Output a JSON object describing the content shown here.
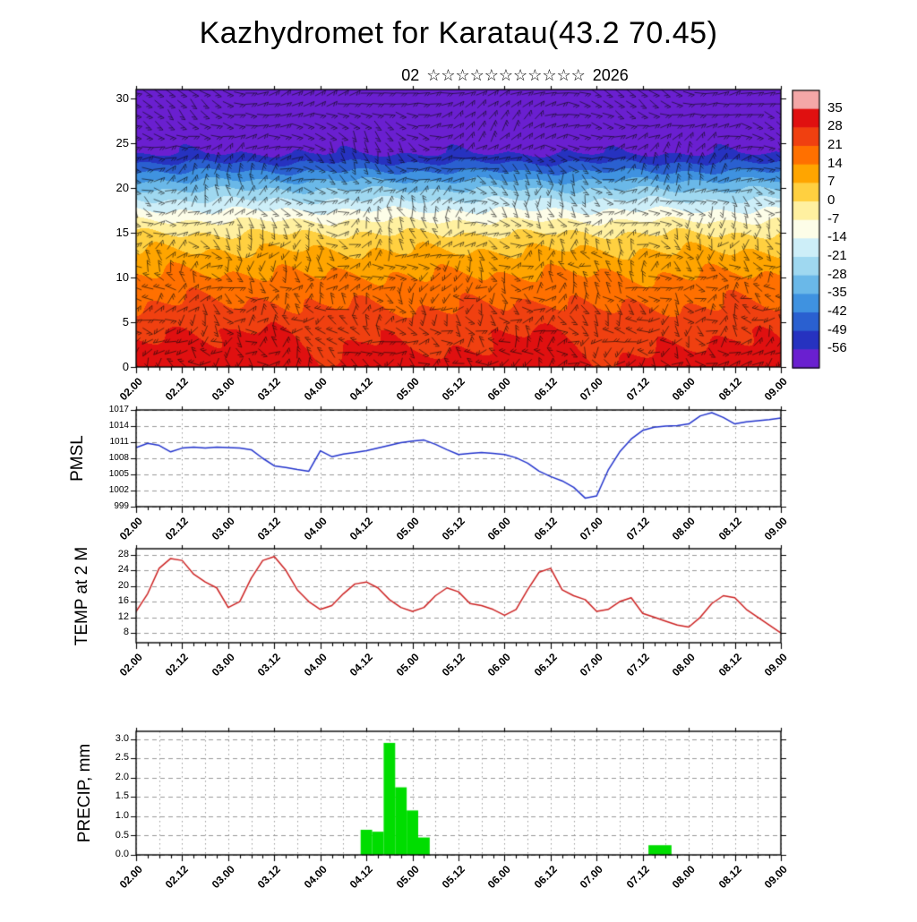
{
  "header": {
    "title": "Kazhydromet for Karatau(43.2 70.45)",
    "subtitle_prefix": "02",
    "subtitle_stars": "☆☆☆☆☆☆☆☆☆☆☆",
    "subtitle_year": "2026"
  },
  "x_axis": {
    "labels": [
      "02.00",
      "02.12",
      "03.00",
      "03.12",
      "04.00",
      "04.12",
      "05.00",
      "05.12",
      "06.00",
      "06.12",
      "07.00",
      "07.12",
      "08.00",
      "08.12",
      "09.00"
    ],
    "hours_start": 0,
    "hours_end": 168,
    "label_step_hours": 12,
    "minor_step_hours": 3
  },
  "colorbar": {
    "ticks": [
      35,
      28,
      21,
      14,
      7,
      0,
      -7,
      -14,
      -21,
      -28,
      -35,
      -42,
      -49,
      -56
    ],
    "colors_top_to_bottom": [
      "#f4a7a7",
      "#e01010",
      "#f04010",
      "#ff7000",
      "#ffa500",
      "#ffd040",
      "#fff0a0",
      "#fdfde8",
      "#cdeef8",
      "#9fd8f0",
      "#6ab8e8",
      "#3f92e0",
      "#2a60d0",
      "#2632c0",
      "#6a1fd0"
    ]
  },
  "chart_data": [
    {
      "type": "heatmap",
      "name": "temperature-height-cross-section",
      "ylabel": "",
      "y_ticks": [
        0,
        5,
        10,
        15,
        20,
        25,
        30
      ],
      "ylim": [
        0,
        31
      ],
      "levels": [
        0,
        2,
        4,
        6,
        8,
        10,
        12,
        14,
        16,
        18,
        20,
        22,
        24,
        26,
        28,
        30
      ],
      "baseline_temp_profile": [
        31,
        29,
        27,
        23,
        19,
        15,
        10,
        4,
        -5,
        -17,
        -29,
        -43,
        -57,
        -61,
        -63,
        -64
      ],
      "surface_anomaly_per_12h": [
        -1,
        3,
        -1,
        3.5,
        -3,
        0,
        -2,
        -1,
        -1,
        3.5,
        -3,
        -2,
        -1,
        1,
        -1
      ],
      "wind_barbs_overlay": true,
      "vgrid_hours": 0
    },
    {
      "type": "line",
      "name": "pmsl",
      "ylabel": "PMSL",
      "color": "#2233cc",
      "y_ticks": [
        999,
        1002,
        1005,
        1008,
        1011,
        1014,
        1017
      ],
      "ylim": [
        999,
        1017
      ],
      "step_hours": 3,
      "vgrid_hours": 12,
      "values": [
        1010.0,
        1010.8,
        1010.4,
        1009.2,
        1009.9,
        1010.1,
        1009.9,
        1010.1,
        1010.0,
        1009.9,
        1009.6,
        1008.0,
        1006.6,
        1006.3,
        1005.9,
        1005.6,
        1009.4,
        1008.3,
        1008.8,
        1009.1,
        1009.4,
        1009.9,
        1010.4,
        1010.9,
        1011.2,
        1011.4,
        1010.6,
        1009.6,
        1008.7,
        1008.9,
        1009.1,
        1008.9,
        1008.7,
        1008.1,
        1007.1,
        1005.6,
        1004.6,
        1003.8,
        1002.6,
        1000.6,
        1001.0,
        1005.8,
        1009.2,
        1011.6,
        1013.2,
        1013.8,
        1014.0,
        1014.1,
        1014.4,
        1015.9,
        1016.5,
        1015.6,
        1014.4,
        1014.8,
        1015.0,
        1015.2,
        1015.5
      ]
    },
    {
      "type": "line",
      "name": "temp-2m",
      "ylabel": "TEMP at 2 M",
      "color": "#cc2222",
      "y_ticks": [
        8,
        12,
        16,
        20,
        24,
        28
      ],
      "ylim": [
        5.5,
        29.5
      ],
      "step_hours": 3,
      "vgrid_hours": 12,
      "values": [
        13.5,
        18,
        24.5,
        27,
        26.5,
        23,
        21,
        19.5,
        14.5,
        16,
        22,
        26.5,
        27.5,
        24,
        19,
        16,
        14,
        15,
        18,
        20.5,
        21,
        19.5,
        16.5,
        14.5,
        13.5,
        14.5,
        17.5,
        19.5,
        18.5,
        15.5,
        15,
        14,
        12.5,
        14,
        19,
        23.5,
        24.5,
        19,
        17.5,
        16.5,
        13.5,
        14,
        16,
        17,
        13,
        12,
        11,
        10,
        9.5,
        12,
        15.5,
        17.5,
        17,
        14,
        12,
        10,
        8
      ]
    },
    {
      "type": "bar",
      "name": "precip",
      "ylabel": "PRECIP, mm",
      "color": "#00dd00",
      "y_ticks": [
        0.0,
        0.5,
        1.0,
        1.5,
        2.0,
        2.5,
        3.0
      ],
      "ylim": [
        0,
        3.2
      ],
      "step_hours": 3,
      "vgrid_hours": 6,
      "values": [
        0,
        0,
        0,
        0,
        0,
        0,
        0,
        0,
        0,
        0,
        0,
        0,
        0,
        0,
        0,
        0,
        0,
        0,
        0,
        0,
        0.65,
        0.6,
        2.9,
        1.75,
        1.15,
        0.45,
        0,
        0,
        0,
        0,
        0,
        0,
        0,
        0,
        0,
        0,
        0,
        0,
        0,
        0,
        0,
        0,
        0,
        0,
        0,
        0.25,
        0.25,
        0,
        0,
        0,
        0,
        0,
        0,
        0,
        0,
        0,
        0
      ]
    }
  ]
}
